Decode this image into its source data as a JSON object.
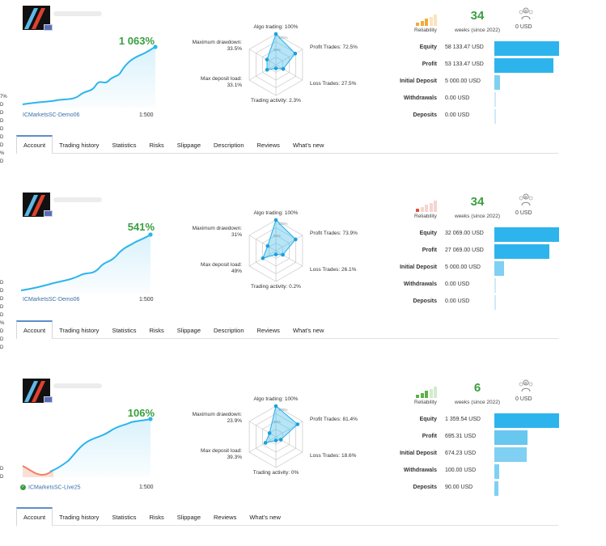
{
  "left_strip": [
    "7%",
    "D",
    "D",
    "D",
    "D",
    "D",
    "D",
    "%",
    "D",
    "D",
    "D",
    "D",
    "D",
    "D",
    "%",
    "D",
    "D",
    "D",
    "D",
    "D"
  ],
  "colors": {
    "accent_blue": "#2eb4ec",
    "growth_green": "#3a9e3f",
    "drawdown_red": "#f08060",
    "tab_active": "#5b8fc9"
  },
  "cards": [
    {
      "growth": "1 063%",
      "server": "ICMarketsSC-Demo06",
      "verified": false,
      "leverage": "1:500",
      "curve_icon": "line",
      "radar": {
        "algo": "Algo trading: 100%",
        "profit": "Profit Trades: 72.5%",
        "loss": "Loss Trades: 27.5%",
        "activity": "Trading activity: 2.3%",
        "deposit_load": "Max deposit load:\n33.1%",
        "drawdown": "Maximum drawdown:\n33.5%",
        "values": [
          1.0,
          0.725,
          0.275,
          0.023,
          0.331,
          0.335
        ]
      },
      "reliability_label": "Reliability",
      "reliability_level": 3,
      "reliability_color": "#f2a93b",
      "weeks": "34",
      "weeks_label": "weeks (since 2022)",
      "subscription": "0 USD",
      "stats": [
        {
          "label": "Equity",
          "value": "58 133.47 USD",
          "share": 1.0
        },
        {
          "label": "Profit",
          "value": "53 133.47 USD",
          "share": 0.914
        },
        {
          "label": "Initial Deposit",
          "value": "5 000.00 USD",
          "share": 0.086
        },
        {
          "label": "Withdrawals",
          "value": "0.00 USD",
          "share": 0.0
        },
        {
          "label": "Deposits",
          "value": "0.00 USD",
          "share": 0.0
        }
      ],
      "tabs": [
        "Account",
        "Trading history",
        "Statistics",
        "Risks",
        "Slippage",
        "Description",
        "Reviews",
        "What's new"
      ]
    },
    {
      "growth": "541%",
      "server": "ICMarketsSC-Demo06",
      "verified": false,
      "leverage": "1:500",
      "radar": {
        "algo": "Algo trading: 100%",
        "profit": "Profit Trades: 73.9%",
        "loss": "Loss Trades: 26.1%",
        "activity": "Trading activity: 0.2%",
        "deposit_load": "Max deposit load:\n49%",
        "drawdown": "Maximum drawdown:\n31%",
        "values": [
          1.0,
          0.739,
          0.261,
          0.002,
          0.49,
          0.31
        ]
      },
      "reliability_label": "Reliability",
      "reliability_level": 1,
      "reliability_color": "#e0533b",
      "weeks": "34",
      "weeks_label": "weeks (since 2022)",
      "subscription": "0 USD",
      "stats": [
        {
          "label": "Equity",
          "value": "32 069.00 USD",
          "share": 1.0
        },
        {
          "label": "Profit",
          "value": "27 069.00 USD",
          "share": 0.844
        },
        {
          "label": "Initial Deposit",
          "value": "5 000.00 USD",
          "share": 0.156
        },
        {
          "label": "Withdrawals",
          "value": "0.00 USD",
          "share": 0.0
        },
        {
          "label": "Deposits",
          "value": "0.00 USD",
          "share": 0.0
        }
      ],
      "tabs": [
        "Account",
        "Trading history",
        "Statistics",
        "Risks",
        "Slippage",
        "Description",
        "Reviews",
        "What's new"
      ]
    },
    {
      "growth": "106%",
      "server": "ICMarketsSC-Live25",
      "verified": true,
      "leverage": "1:500",
      "radar": {
        "algo": "Algo trading: 100%",
        "profit": "Profit Trades: 81.4%",
        "loss": "Loss Trades: 18.6%",
        "activity": "Trading activity: 0%",
        "deposit_load": "Max deposit load:\n39.3%",
        "drawdown": "Maximum drawdown:\n23.9%",
        "values": [
          1.0,
          0.814,
          0.186,
          0.0,
          0.393,
          0.239
        ]
      },
      "reliability_label": "Reliability",
      "reliability_level": 3,
      "reliability_color": "#5bb14a",
      "weeks": "6",
      "weeks_label": "weeks (since 2022)",
      "subscription": "0 USD",
      "stats": [
        {
          "label": "Equity",
          "value": "1 359.54 USD",
          "share": 1.0
        },
        {
          "label": "Profit",
          "value": "695.31 USD",
          "share": 0.511
        },
        {
          "label": "Initial Deposit",
          "value": "674.23 USD",
          "share": 0.496
        },
        {
          "label": "Withdrawals",
          "value": "100.00 USD",
          "share": 0.074
        },
        {
          "label": "Deposits",
          "value": "90.00 USD",
          "share": 0.066
        }
      ],
      "tabs": [
        "Account",
        "Trading history",
        "Statistics",
        "Risks",
        "Slippage",
        "Reviews",
        "What's new"
      ]
    }
  ]
}
